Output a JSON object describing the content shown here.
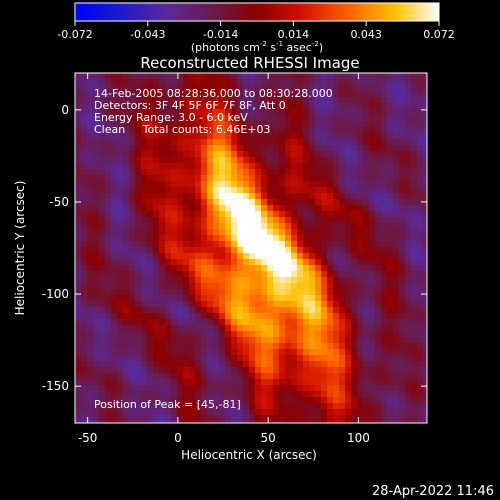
{
  "chart_data": {
    "type": "heatmap",
    "title": "Reconstructed RHESSI Image",
    "xlabel": "Heliocentric X (arcsec)",
    "ylabel": "Heliocentric Y (arcsec)",
    "xlim": [
      -57,
      138
    ],
    "ylim": [
      -170,
      20
    ],
    "xticks": [
      -50,
      0,
      50,
      100
    ],
    "yticks": [
      0,
      -50,
      -100,
      -150
    ],
    "colorbar": {
      "min": -0.072,
      "max": 0.072,
      "ticks": [
        "-0.072",
        "-0.043",
        "-0.014",
        "0.014",
        "0.043",
        "0.072"
      ],
      "unit_label_base": "(photons cm",
      "unit_exp1": "-2",
      "unit_mid": " s",
      "unit_exp2": "-1",
      "unit_mid2": " asec",
      "unit_exp3": "-2",
      "unit_close": ")"
    },
    "annotations": {
      "time": "14-Feb-2005 08:28:36.000 to 08:30:28.000",
      "detectors": "Detectors: 3F 4F 5F 6F 7F 8F, Att 0",
      "energy": "Energy Range: 3.0 - 6.0 keV",
      "clean": "Clean     Total counts: 6.46E+03",
      "peak": "Position of Peak = [45,-81]"
    },
    "peak": [
      45,
      -81
    ],
    "grid": false
  },
  "footer": {
    "datestamp": "28-Apr-2022 11:46"
  }
}
